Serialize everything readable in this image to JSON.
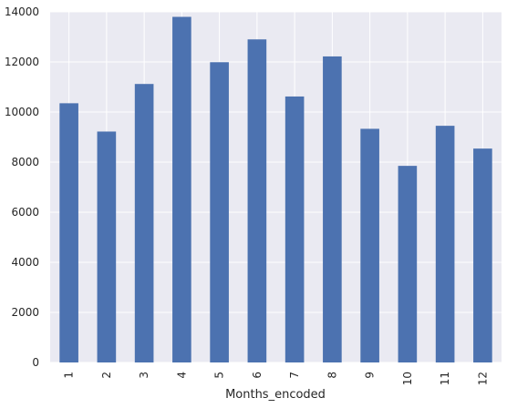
{
  "chart_data": {
    "type": "bar",
    "xlabel": "Months_encoded",
    "ylabel": "",
    "categories": [
      "1",
      "2",
      "3",
      "4",
      "5",
      "6",
      "7",
      "8",
      "9",
      "10",
      "11",
      "12"
    ],
    "values": [
      10350,
      9220,
      11120,
      13800,
      11990,
      12900,
      10620,
      12220,
      9330,
      7850,
      9450,
      8540
    ],
    "ylim": [
      0,
      14000
    ],
    "yticks": [
      0,
      2000,
      4000,
      6000,
      8000,
      10000,
      12000,
      14000
    ],
    "grid": true,
    "colors": {
      "bar": "#4c72b0",
      "background": "#eaeaf2",
      "grid": "#ffffff"
    }
  }
}
